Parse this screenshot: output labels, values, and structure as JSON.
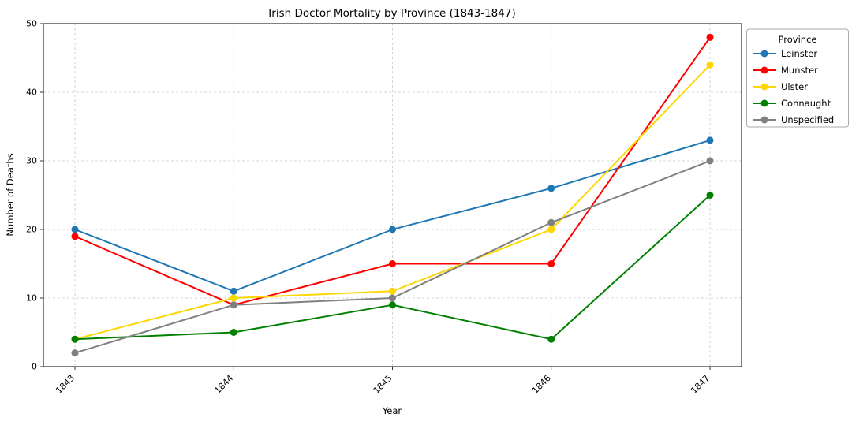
{
  "chart_data": {
    "type": "line",
    "title": "Irish Doctor Mortality by Province (1843-1847)",
    "xlabel": "Year",
    "ylabel": "Number of Deaths",
    "categories": [
      "1843",
      "1844",
      "1845",
      "1846",
      "1847"
    ],
    "ylim": [
      0,
      50
    ],
    "yticks": [
      0,
      10,
      20,
      30,
      40,
      50
    ],
    "grid": true,
    "grid_style": "dashed",
    "legend_title": "Province",
    "legend_position": "upper right outside",
    "series": [
      {
        "name": "Leinster",
        "color": "#1f77b4",
        "values": [
          20,
          11,
          20,
          26,
          33
        ]
      },
      {
        "name": "Munster",
        "color": "#ff0000",
        "values": [
          19,
          9,
          15,
          15,
          48
        ]
      },
      {
        "name": "Ulster",
        "color": "#ffd700",
        "values": [
          4,
          10,
          11,
          20,
          44
        ]
      },
      {
        "name": "Connaught",
        "color": "#008000",
        "values": [
          4,
          5,
          9,
          4,
          25
        ]
      },
      {
        "name": "Unspecified",
        "color": "#808080",
        "values": [
          2,
          9,
          10,
          21,
          30
        ]
      }
    ]
  }
}
